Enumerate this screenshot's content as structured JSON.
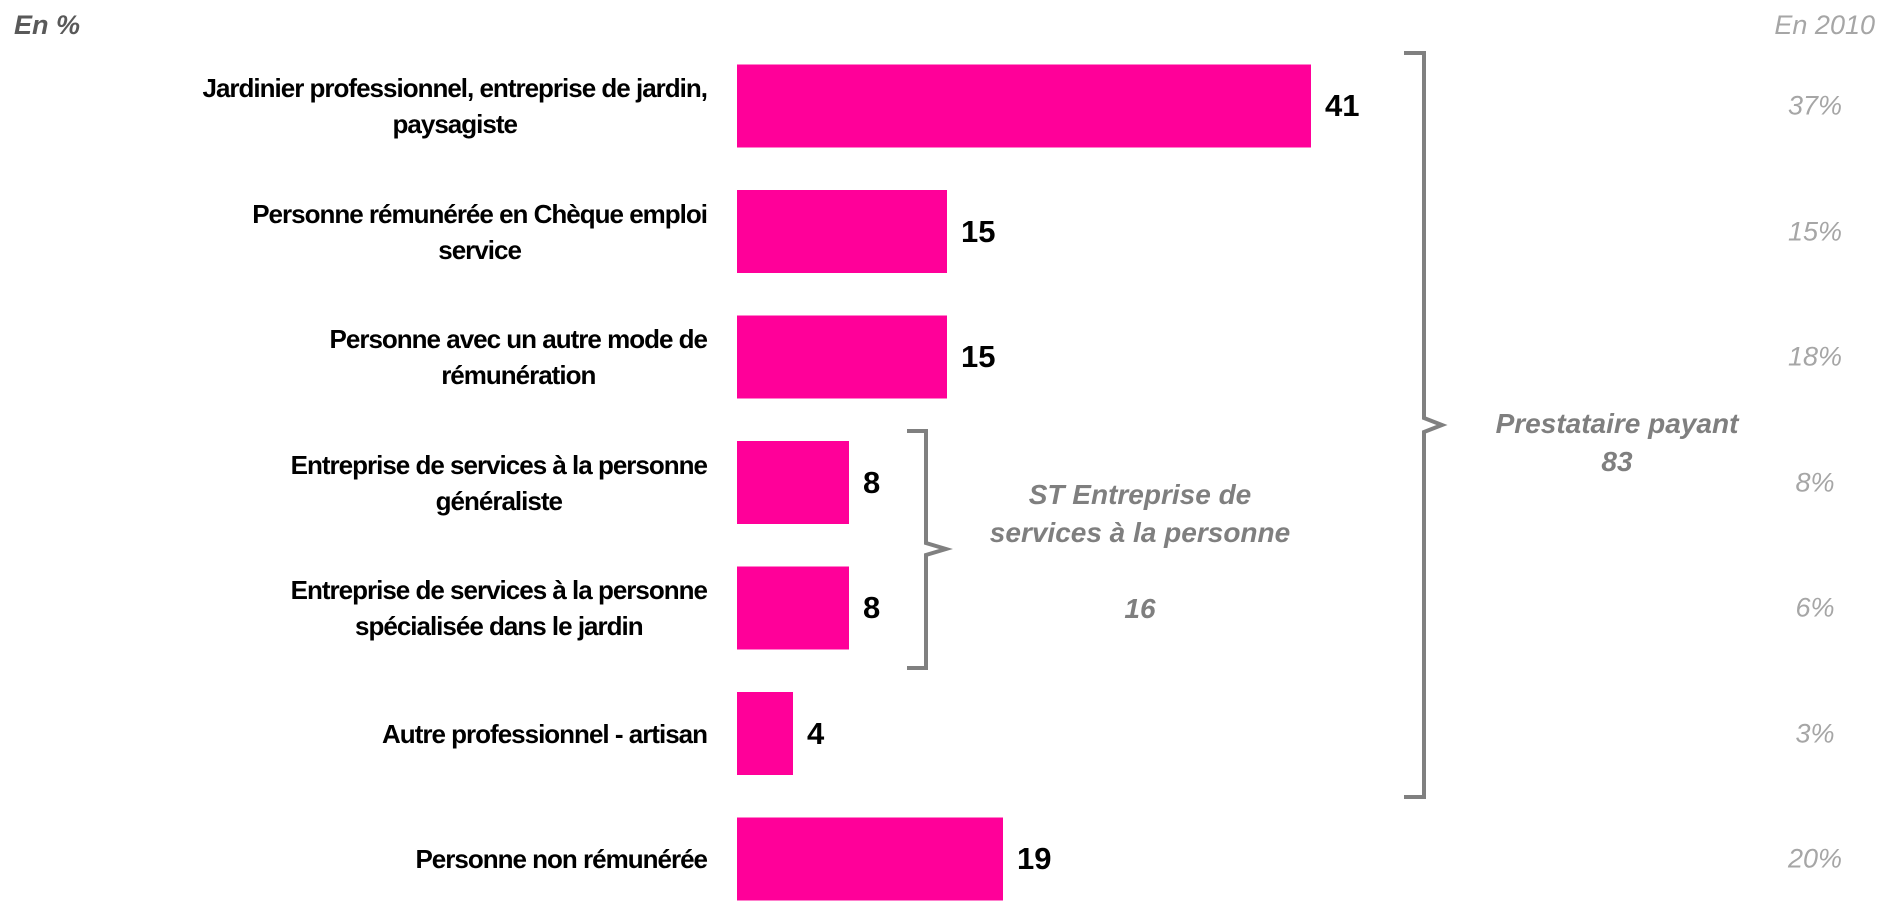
{
  "chart_data": {
    "type": "bar",
    "orientation": "horizontal",
    "unit_label": "En %",
    "color": "#ff0099",
    "categories": [
      "Jardinier professionnel, entreprise de jardin,\npaysagiste",
      "Personne rémunérée en Chèque emploi\nservice",
      "Personne avec un autre mode de\nrémunération",
      "Entreprise de services à la personne\ngénéraliste",
      "Entreprise de services à la personne\nspécialisée dans le jardin",
      "Autre professionnel - artisan",
      "Personne non rémunérée"
    ],
    "values": [
      41,
      15,
      15,
      8,
      8,
      4,
      19
    ],
    "comparison": {
      "label": "En 2010",
      "values": [
        37,
        15,
        18,
        8,
        6,
        3,
        20
      ],
      "value_labels": [
        "37%",
        "15%",
        "18%",
        "8%",
        "6%",
        "3%",
        "20%"
      ]
    },
    "groups": [
      {
        "label": "Prestataire payant",
        "value": 83
      },
      {
        "label": "ST Entreprise de\nservices à la personne",
        "value": 16
      }
    ]
  }
}
